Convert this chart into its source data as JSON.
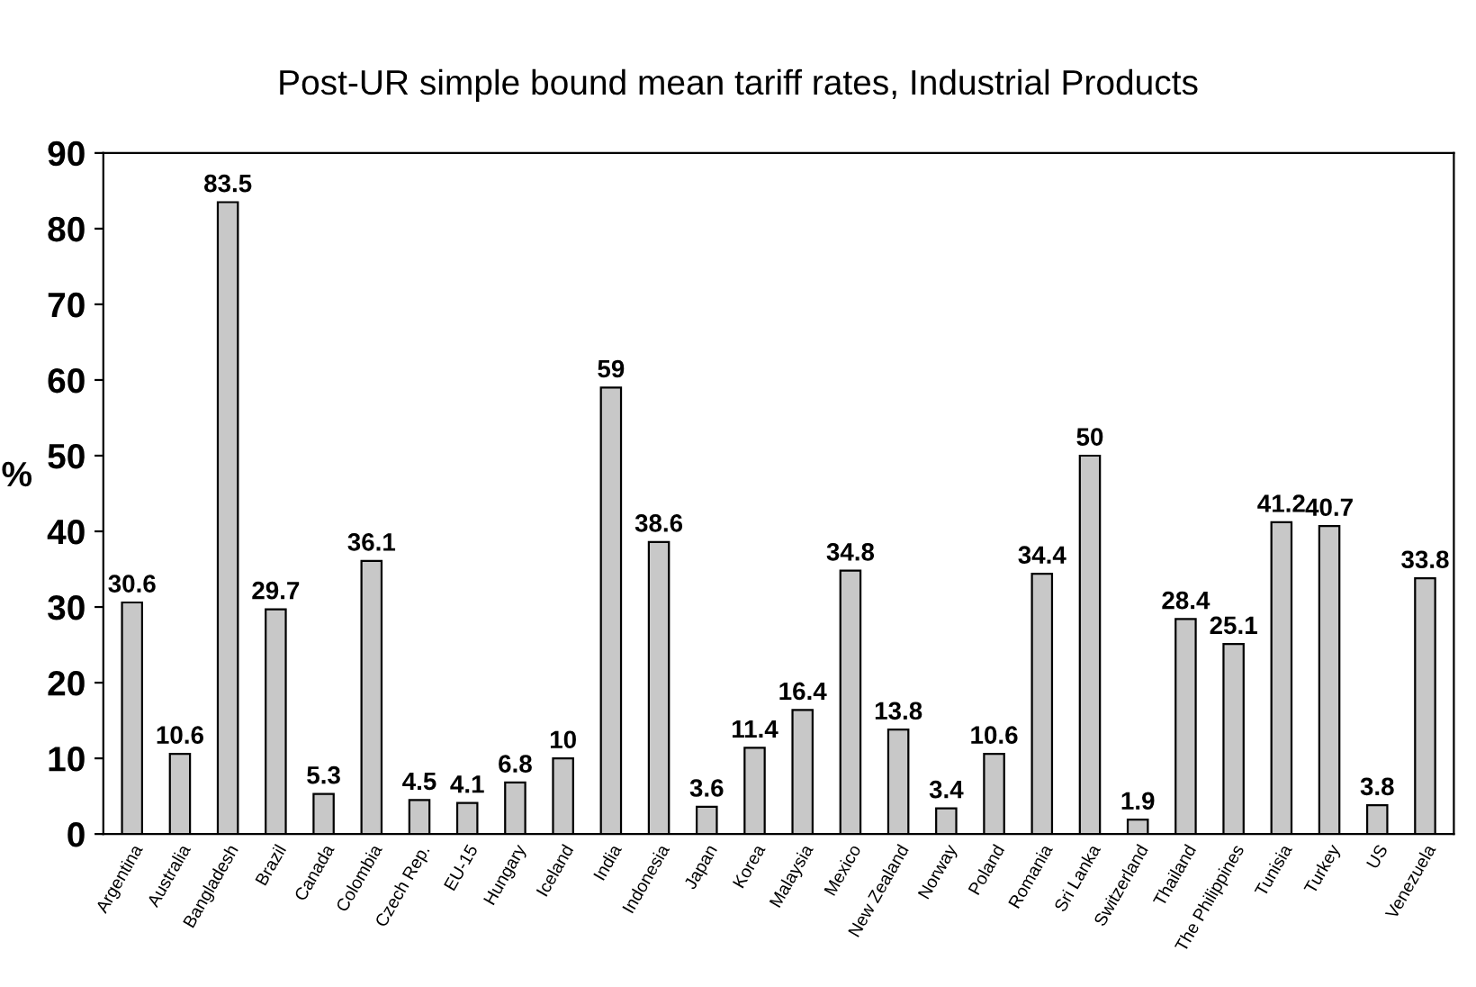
{
  "chart_data": {
    "type": "bar",
    "title": "Post-UR simple bound mean tariff rates, Industrial Products",
    "ylabel": "%",
    "categories": [
      "Argentina",
      "Australia",
      "Bangladesh",
      "Brazil",
      "Canada",
      "Colombia",
      "Czech Rep.",
      "EU-15",
      "Hungary",
      "Iceland",
      "India",
      "Indonesia",
      "Japan",
      "Korea",
      "Malaysia",
      "Mexico",
      "New Zealand",
      "Norway",
      "Poland",
      "Romania",
      "Sri Lanka",
      "Switzerland",
      "Thailand",
      "The Philippines",
      "Tunisia",
      "Turkey",
      "US",
      "Venezuela"
    ],
    "values": [
      30.6,
      10.6,
      83.5,
      29.7,
      5.3,
      36.1,
      4.5,
      4.1,
      6.8,
      10,
      59,
      38.6,
      3.6,
      11.4,
      16.4,
      34.8,
      13.8,
      3.4,
      10.6,
      34.4,
      50,
      1.9,
      28.4,
      25.1,
      41.2,
      40.7,
      3.8,
      33.8
    ],
    "color": "#c8c8c8",
    "ylim": [
      0,
      90
    ],
    "yticks": [
      0,
      10,
      20,
      30,
      40,
      50,
      60,
      70,
      80,
      90
    ],
    "grid": false,
    "data_labels": true,
    "legend": false
  }
}
